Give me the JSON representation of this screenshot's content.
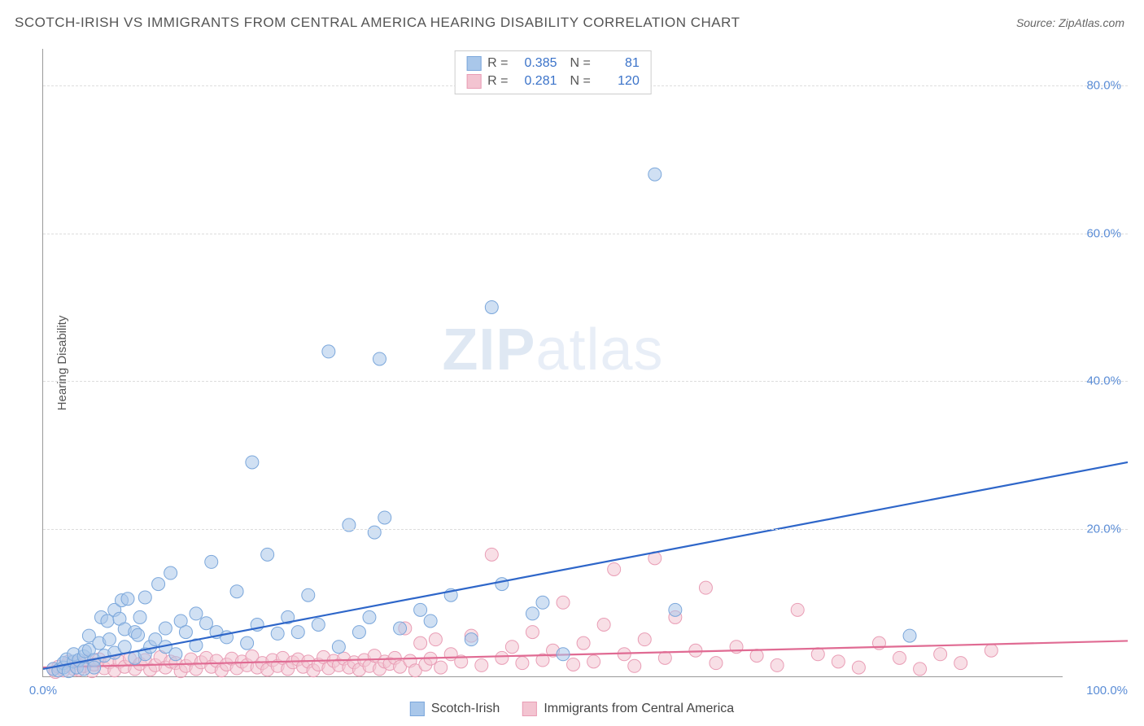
{
  "header": {
    "title": "SCOTCH-IRISH VS IMMIGRANTS FROM CENTRAL AMERICA HEARING DISABILITY CORRELATION CHART",
    "source_label": "Source:",
    "source_name": "ZipAtlas.com"
  },
  "watermark": {
    "bold": "ZIP",
    "light": "atlas"
  },
  "chart": {
    "type": "scatter",
    "ylabel": "Hearing Disability",
    "xlim": [
      0,
      100
    ],
    "ylim": [
      0,
      85
    ],
    "ytick_step": 20,
    "xtick_labels": [
      "0.0%",
      "100.0%"
    ],
    "ytick_labels": [
      "20.0%",
      "40.0%",
      "60.0%",
      "80.0%"
    ],
    "grid_color": "#dddddd",
    "background_color": "#ffffff",
    "axis_color": "#999999",
    "tick_text_color": "#5b8dd6",
    "marker_radius": 8,
    "marker_opacity": 0.55,
    "line_width": 2.2,
    "series": [
      {
        "name": "Scotch-Irish",
        "color_fill": "#a9c7ea",
        "color_stroke": "#7ba7db",
        "line_color": "#2e66c9",
        "R": "0.385",
        "N": "81",
        "trend": {
          "x1": 0,
          "y1": 1.0,
          "x2": 100,
          "y2": 29.0
        },
        "points": [
          [
            1,
            1
          ],
          [
            1.5,
            0.8
          ],
          [
            2,
            1.8
          ],
          [
            2,
            1.2
          ],
          [
            2.3,
            2.3
          ],
          [
            2.5,
            0.7
          ],
          [
            3,
            2.0
          ],
          [
            3,
            3.0
          ],
          [
            3.3,
            1.2
          ],
          [
            3.5,
            2.2
          ],
          [
            4,
            1.0
          ],
          [
            4,
            2.7
          ],
          [
            4.1,
            3.4
          ],
          [
            4.5,
            3.6
          ],
          [
            4.5,
            5.5
          ],
          [
            5,
            2.2
          ],
          [
            5,
            1.2
          ],
          [
            5.5,
            4.5
          ],
          [
            5.7,
            8.0
          ],
          [
            6,
            2.8
          ],
          [
            6.3,
            7.5
          ],
          [
            6.5,
            5.0
          ],
          [
            7,
            3.2
          ],
          [
            7,
            9.0
          ],
          [
            7.5,
            7.8
          ],
          [
            7.7,
            10.3
          ],
          [
            8,
            4.0
          ],
          [
            8,
            6.4
          ],
          [
            8.3,
            10.5
          ],
          [
            9,
            2.5
          ],
          [
            9,
            6.0
          ],
          [
            9.3,
            5.6
          ],
          [
            9.5,
            8.0
          ],
          [
            10,
            3.0
          ],
          [
            10,
            10.7
          ],
          [
            10.5,
            4.0
          ],
          [
            11,
            5.0
          ],
          [
            11.3,
            12.5
          ],
          [
            12,
            4.0
          ],
          [
            12,
            6.5
          ],
          [
            12.5,
            14.0
          ],
          [
            13,
            3.0
          ],
          [
            13.5,
            7.5
          ],
          [
            14,
            6.0
          ],
          [
            15,
            8.5
          ],
          [
            15,
            4.2
          ],
          [
            16,
            7.2
          ],
          [
            16.5,
            15.5
          ],
          [
            17,
            6.0
          ],
          [
            18,
            5.3
          ],
          [
            19,
            11.5
          ],
          [
            20,
            4.5
          ],
          [
            20.5,
            29.0
          ],
          [
            21,
            7.0
          ],
          [
            22,
            16.5
          ],
          [
            23,
            5.8
          ],
          [
            24,
            8.0
          ],
          [
            25,
            6.0
          ],
          [
            26,
            11.0
          ],
          [
            27,
            7.0
          ],
          [
            28,
            44.0
          ],
          [
            29,
            4.0
          ],
          [
            30,
            20.5
          ],
          [
            31,
            6.0
          ],
          [
            32,
            8.0
          ],
          [
            32.5,
            19.5
          ],
          [
            33,
            43.0
          ],
          [
            33.5,
            21.5
          ],
          [
            35,
            6.5
          ],
          [
            37,
            9.0
          ],
          [
            38,
            7.5
          ],
          [
            40,
            11.0
          ],
          [
            42,
            5.0
          ],
          [
            44,
            50.0
          ],
          [
            45,
            12.5
          ],
          [
            48,
            8.5
          ],
          [
            49,
            10.0
          ],
          [
            51,
            3.0
          ],
          [
            60,
            68.0
          ],
          [
            62,
            9.0
          ],
          [
            85,
            5.5
          ]
        ]
      },
      {
        "name": "Immigrants from Central America",
        "color_fill": "#f3c4d1",
        "color_stroke": "#e99db5",
        "line_color": "#e06b93",
        "R": "0.281",
        "N": "120",
        "trend": {
          "x1": 0,
          "y1": 1.2,
          "x2": 100,
          "y2": 4.8
        },
        "points": [
          [
            1,
            1
          ],
          [
            1.2,
            0.6
          ],
          [
            1.5,
            1.3
          ],
          [
            2,
            0.8
          ],
          [
            2.3,
            1.5
          ],
          [
            2.5,
            2.0
          ],
          [
            3,
            1.0
          ],
          [
            3.3,
            1.8
          ],
          [
            3.5,
            0.9
          ],
          [
            4,
            1.4
          ],
          [
            4.3,
            2.1
          ],
          [
            4.8,
            0.7
          ],
          [
            5,
            1.6
          ],
          [
            5.5,
            2.3
          ],
          [
            6,
            1.1
          ],
          [
            6.5,
            1.9
          ],
          [
            7,
            0.8
          ],
          [
            7.5,
            2.0
          ],
          [
            8,
            1.3
          ],
          [
            8.5,
            2.4
          ],
          [
            9,
            1.0
          ],
          [
            9.5,
            1.7
          ],
          [
            10,
            2.2
          ],
          [
            10.5,
            0.9
          ],
          [
            11,
            1.5
          ],
          [
            11.5,
            2.6
          ],
          [
            12,
            1.2
          ],
          [
            12.5,
            2.0
          ],
          [
            13,
            1.8
          ],
          [
            13.5,
            0.7
          ],
          [
            14,
            1.4
          ],
          [
            14.5,
            2.3
          ],
          [
            15,
            1.0
          ],
          [
            15.5,
            1.9
          ],
          [
            16,
            2.5
          ],
          [
            16.5,
            1.3
          ],
          [
            17,
            2.1
          ],
          [
            17.5,
            0.8
          ],
          [
            18,
            1.6
          ],
          [
            18.5,
            2.4
          ],
          [
            19,
            1.1
          ],
          [
            19.5,
            2.0
          ],
          [
            20,
            1.5
          ],
          [
            20.5,
            2.7
          ],
          [
            21,
            1.2
          ],
          [
            21.5,
            1.8
          ],
          [
            22,
            0.9
          ],
          [
            22.5,
            2.2
          ],
          [
            23,
            1.4
          ],
          [
            23.5,
            2.5
          ],
          [
            24,
            1.0
          ],
          [
            24.5,
            1.9
          ],
          [
            25,
            2.3
          ],
          [
            25.5,
            1.3
          ],
          [
            26,
            2.0
          ],
          [
            26.5,
            0.8
          ],
          [
            27,
            1.6
          ],
          [
            27.5,
            2.6
          ],
          [
            28,
            1.1
          ],
          [
            28.5,
            2.1
          ],
          [
            29,
            1.5
          ],
          [
            29.5,
            2.4
          ],
          [
            30,
            1.2
          ],
          [
            30.5,
            1.9
          ],
          [
            31,
            0.9
          ],
          [
            31.5,
            2.2
          ],
          [
            32,
            1.4
          ],
          [
            32.5,
            2.8
          ],
          [
            33,
            1.0
          ],
          [
            33.5,
            2.0
          ],
          [
            34,
            1.7
          ],
          [
            34.5,
            2.5
          ],
          [
            35,
            1.3
          ],
          [
            35.5,
            6.5
          ],
          [
            36,
            2.1
          ],
          [
            36.5,
            0.8
          ],
          [
            37,
            4.5
          ],
          [
            37.5,
            1.6
          ],
          [
            38,
            2.4
          ],
          [
            38.5,
            5.0
          ],
          [
            39,
            1.2
          ],
          [
            40,
            3.0
          ],
          [
            41,
            2.0
          ],
          [
            42,
            5.5
          ],
          [
            43,
            1.5
          ],
          [
            44,
            16.5
          ],
          [
            45,
            2.5
          ],
          [
            46,
            4.0
          ],
          [
            47,
            1.8
          ],
          [
            48,
            6.0
          ],
          [
            49,
            2.2
          ],
          [
            50,
            3.5
          ],
          [
            51,
            10.0
          ],
          [
            52,
            1.6
          ],
          [
            53,
            4.5
          ],
          [
            54,
            2.0
          ],
          [
            55,
            7.0
          ],
          [
            56,
            14.5
          ],
          [
            57,
            3.0
          ],
          [
            58,
            1.4
          ],
          [
            59,
            5.0
          ],
          [
            60,
            16.0
          ],
          [
            61,
            2.5
          ],
          [
            62,
            8.0
          ],
          [
            64,
            3.5
          ],
          [
            65,
            12.0
          ],
          [
            66,
            1.8
          ],
          [
            68,
            4.0
          ],
          [
            70,
            2.8
          ],
          [
            72,
            1.5
          ],
          [
            74,
            9.0
          ],
          [
            76,
            3.0
          ],
          [
            78,
            2.0
          ],
          [
            80,
            1.2
          ],
          [
            82,
            4.5
          ],
          [
            84,
            2.5
          ],
          [
            86,
            1.0
          ],
          [
            88,
            3.0
          ],
          [
            90,
            1.8
          ],
          [
            93,
            3.5
          ]
        ]
      }
    ],
    "stat_legend": {
      "R_label": "R =",
      "N_label": "N ="
    }
  },
  "bottom_legend": {
    "items": [
      "Scotch-Irish",
      "Immigrants from Central America"
    ]
  }
}
